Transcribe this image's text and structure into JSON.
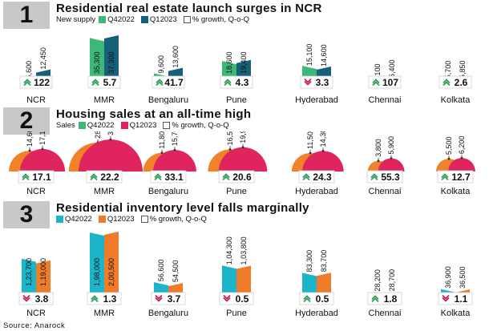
{
  "cities": [
    "NCR",
    "MMR",
    "Bengaluru",
    "Pune",
    "Hyderabad",
    "Chennai",
    "Kolkata"
  ],
  "chart_data": [
    {
      "type": "bar",
      "number": "1",
      "title": "Residential real estate launch surges in NCR",
      "legend_prefix": "New supply",
      "categories": [
        "NCR",
        "MMR",
        "Bengaluru",
        "Pune",
        "Hyderabad",
        "Chennai",
        "Kolkata"
      ],
      "series": [
        {
          "name": "Q42022",
          "color": "#3cb878",
          "values": [
            5600,
            35300,
            9600,
            18600,
            15100,
            3100,
            5700
          ],
          "labels": [
            "5,600",
            "35,300",
            "9,600",
            "18,600",
            "15,100",
            "3,100",
            "5,700"
          ]
        },
        {
          "name": "Q12023",
          "color": "#16607a",
          "values": [
            12450,
            37300,
            13600,
            19400,
            14600,
            6400,
            5850
          ],
          "labels": [
            "12,450",
            "37,300",
            "13,600",
            "19,400",
            "14,600",
            "6,400",
            "5,850"
          ]
        }
      ],
      "growth_legend": "% growth, Q-o-Q",
      "growth": [
        {
          "value": "122",
          "dir": "up"
        },
        {
          "value": "5.7",
          "dir": "up"
        },
        {
          "value": "41.7",
          "dir": "up"
        },
        {
          "value": "4.3",
          "dir": "up"
        },
        {
          "value": "3.3",
          "dir": "down"
        },
        {
          "value": "107",
          "dir": "up"
        },
        {
          "value": "2.6",
          "dir": "up"
        }
      ]
    },
    {
      "type": "bar",
      "number": "2",
      "title": "Housing sales at an all-time high",
      "legend_prefix": "Sales",
      "categories": [
        "NCR",
        "MMR",
        "Bengaluru",
        "Pune",
        "Hyderabad",
        "Chennai",
        "Kolkata"
      ],
      "series": [
        {
          "name": "Q42022",
          "color": "#f0822a",
          "values": [
            14600,
            28400,
            11800,
            16500,
            11500,
            3800,
            5500
          ],
          "labels": [
            "14,600",
            "28,400",
            "11,800",
            "16,500",
            "11,500",
            "3,800",
            "5,500"
          ]
        },
        {
          "name": "Q12023",
          "color": "#e0245e",
          "values": [
            17100,
            34700,
            15700,
            19900,
            14300,
            5900,
            6200
          ],
          "labels": [
            "17,100",
            "34,700",
            "15,700",
            "19,900",
            "14,300",
            "5,900",
            "6,200"
          ]
        }
      ],
      "growth_legend": "% growth, Q-o-Q",
      "growth": [
        {
          "value": "17.1",
          "dir": "up"
        },
        {
          "value": "22.2",
          "dir": "up"
        },
        {
          "value": "33.1",
          "dir": "up"
        },
        {
          "value": "20.6",
          "dir": "up"
        },
        {
          "value": "24.3",
          "dir": "up"
        },
        {
          "value": "55.3",
          "dir": "up"
        },
        {
          "value": "12.7",
          "dir": "up"
        }
      ]
    },
    {
      "type": "bar",
      "number": "3",
      "title": "Residential inventory level falls marginally",
      "legend_prefix": "",
      "categories": [
        "NCR",
        "MMR",
        "Bengaluru",
        "Pune",
        "Hyderabad",
        "Chennai",
        "Kolkata"
      ],
      "series": [
        {
          "name": "Q42022",
          "color": "#1bb4c8",
          "values": [
            123700,
            198000,
            56600,
            104300,
            83300,
            28200,
            36900
          ],
          "labels": [
            "1,23,700",
            "1,98,000",
            "56,600",
            "1,04,300",
            "83,300",
            "28,200",
            "36,900"
          ]
        },
        {
          "name": "Q12023",
          "color": "#f07c2a",
          "values": [
            119000,
            200500,
            54500,
            103800,
            83700,
            28700,
            36500
          ],
          "labels": [
            "1,19,000",
            "2,00,500",
            "54,500",
            "1,03,800",
            "83,700",
            "28,700",
            "36,500"
          ]
        }
      ],
      "growth_legend": "% growth, Q-o-Q",
      "growth": [
        {
          "value": "3.8",
          "dir": "down"
        },
        {
          "value": "1.3",
          "dir": "up"
        },
        {
          "value": "3.7",
          "dir": "down"
        },
        {
          "value": "0.5",
          "dir": "down"
        },
        {
          "value": "0.5",
          "dir": "up"
        },
        {
          "value": "1.8",
          "dir": "up"
        },
        {
          "value": "1.1",
          "dir": "down"
        }
      ]
    }
  ],
  "colors": {
    "up": "#2e9e5a",
    "down": "#c4244f",
    "section_bg": "#c8c8c8"
  },
  "source": "Source: Anarock"
}
